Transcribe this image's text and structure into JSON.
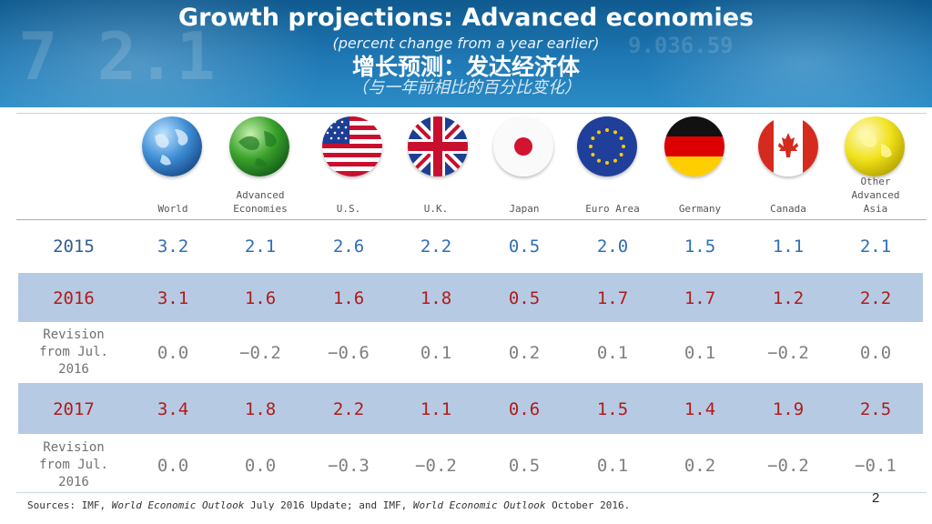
{
  "title": {
    "main": "Growth projections:  Advanced economies",
    "sub": "(percent change from a year earlier)",
    "cn": "增长预测：发达经济体",
    "cn_sub": "（与一年前相比的百分比变化）"
  },
  "columns": [
    "World",
    "Advanced Economies",
    "U.S.",
    "U.K.",
    "Japan",
    "Euro Area",
    "Germany",
    "Canada",
    "Other Advanced Asia"
  ],
  "column_lines": {
    "world": [
      "World"
    ],
    "advanced": [
      "Advanced",
      "Economies"
    ],
    "us": [
      "U.S."
    ],
    "uk": [
      "U.K."
    ],
    "japan": [
      "Japan"
    ],
    "euro": [
      "Euro Area"
    ],
    "germany": [
      "Germany"
    ],
    "canada": [
      "Canada"
    ],
    "other": [
      "Other",
      "Advanced",
      "Asia"
    ]
  },
  "icons": [
    "world-globe-icon",
    "advanced-economies-globe-icon",
    "us-flag-icon",
    "uk-flag-icon",
    "japan-flag-icon",
    "euro-flag-icon",
    "germany-flag-icon",
    "canada-flag-icon",
    "other-advanced-asia-globe-icon"
  ],
  "rows": {
    "r2015": {
      "label": "2015",
      "values": [
        "3.2",
        "2.1",
        "2.6",
        "2.2",
        "0.5",
        "2.0",
        "1.5",
        "1.1",
        "2.1"
      ]
    },
    "r2016": {
      "label": "2016",
      "values": [
        "3.1",
        "1.6",
        "1.6",
        "1.8",
        "0.5",
        "1.7",
        "1.7",
        "1.2",
        "2.2"
      ]
    },
    "rev2016": {
      "label_lines": [
        "Revision",
        "from Jul.",
        "2016"
      ],
      "values": [
        "0.0",
        "−0.2",
        "−0.6",
        "0.1",
        "0.2",
        "0.1",
        "0.1",
        "−0.2",
        "0.0"
      ]
    },
    "r2017": {
      "label": "2017",
      "values": [
        "3.4",
        "1.8",
        "2.2",
        "1.1",
        "0.6",
        "1.5",
        "1.4",
        "1.9",
        "2.5"
      ]
    },
    "rev2017": {
      "label_lines": [
        "Revision",
        "from Jul.",
        "2016"
      ],
      "values": [
        "0.0",
        "0.0",
        "−0.3",
        "−0.2",
        "0.5",
        "0.1",
        "0.2",
        "−0.2",
        "−0.1"
      ]
    }
  },
  "sources": {
    "prefix": "Sources: IMF, ",
    "pub1": "World Economic Outlook",
    "mid": " July 2016 Update; and IMF, ",
    "pub2": "World Economic Outlook",
    "suffix": " October 2016."
  },
  "page_number": "2",
  "colors": {
    "banner": "#1f78b4",
    "band": "#b6cbe3",
    "blue_text": "#2e6fb5",
    "red_text": "#b01b1b",
    "grey_text": "#808080"
  }
}
